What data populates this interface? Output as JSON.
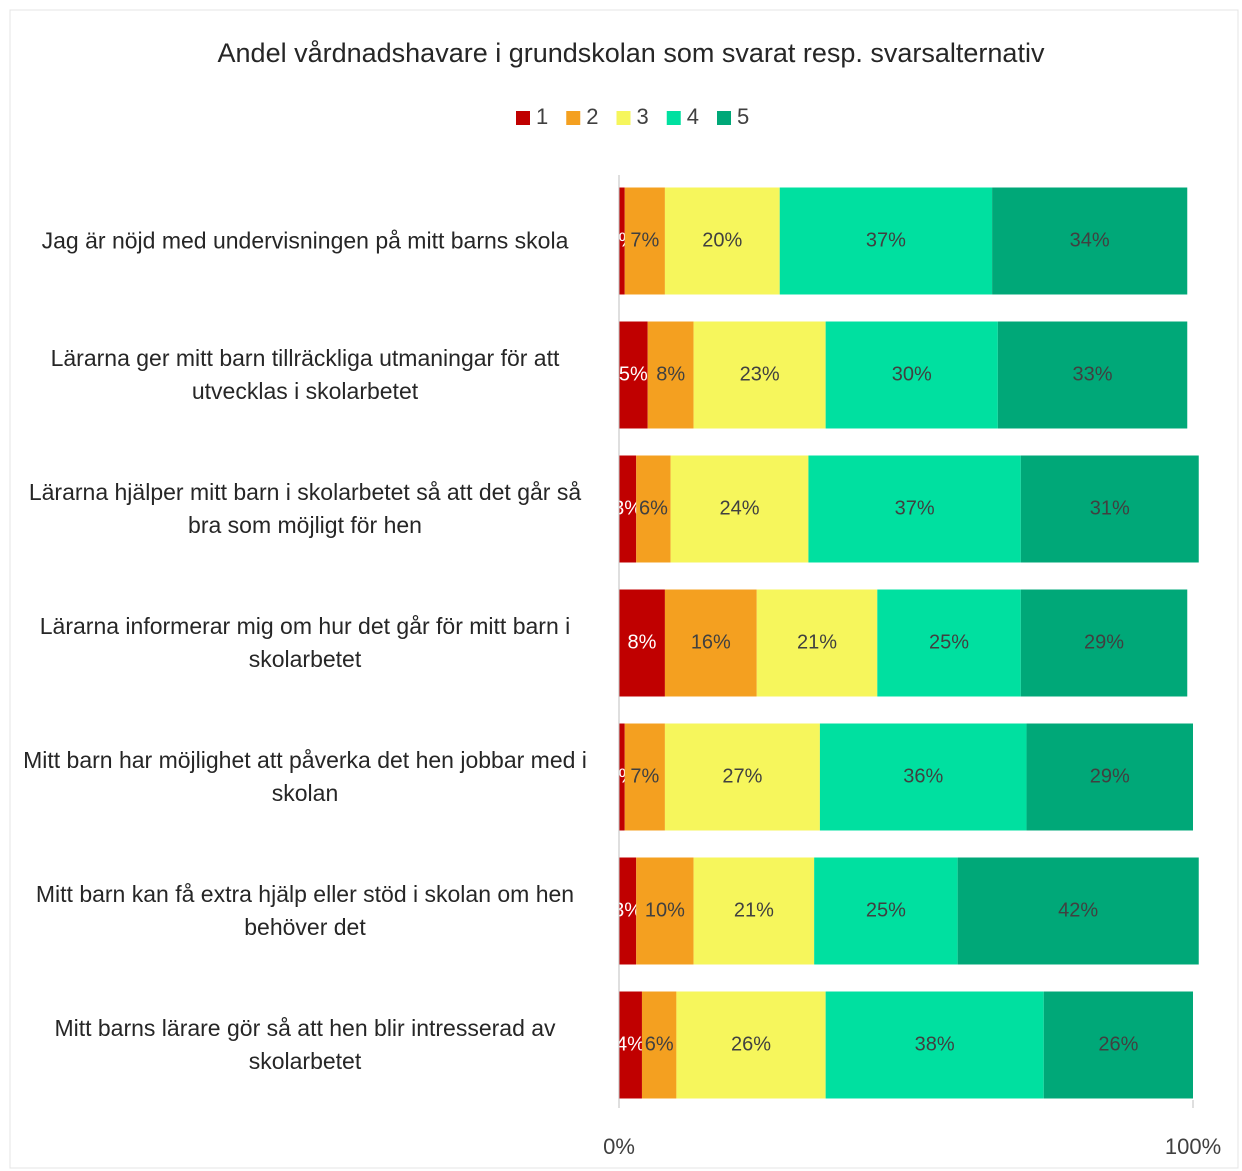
{
  "chart_data": {
    "type": "stacked_barh",
    "title": "Andel vårdnadshavare i grundskolan som svarat resp. svarsalternativ",
    "categories": [
      "Jag är nöjd med undervisningen på mitt barns skola",
      "Lärarna ger mitt barn tillräckliga utmaningar för att utvecklas i skolarbetet",
      "Lärarna hjälper mitt barn i skolarbetet så att det går så bra som möjligt för hen",
      "Lärarna informerar mig om hur det går för mitt barn i skolarbetet",
      "Mitt barn har möjlighet att påverka det hen jobbar med i skolan",
      "Mitt barn kan få extra hjälp eller stöd i skolan om hen behöver det",
      "Mitt barns lärare gör så att hen blir intresserad av skolarbetet"
    ],
    "series": [
      {
        "name": "1",
        "color": "#c00000",
        "values": [
          1,
          5,
          3,
          8,
          1,
          3,
          4
        ],
        "value_labels": [
          "1%",
          "5%",
          "3%",
          "8%",
          "1%",
          "3%",
          "4%"
        ]
      },
      {
        "name": "2",
        "color": "#f4a020",
        "values": [
          7,
          8,
          6,
          16,
          7,
          10,
          6
        ],
        "value_labels": [
          "7%",
          "8%",
          "6%",
          "16%",
          "7%",
          "10%",
          "6%"
        ]
      },
      {
        "name": "3",
        "color": "#f6f65c",
        "values": [
          20,
          23,
          24,
          21,
          27,
          21,
          26
        ],
        "value_labels": [
          "20%",
          "23%",
          "24%",
          "21%",
          "27%",
          "21%",
          "26%"
        ]
      },
      {
        "name": "4",
        "color": "#00e0a0",
        "values": [
          37,
          30,
          37,
          25,
          36,
          25,
          38
        ],
        "value_labels": [
          "37%",
          "30%",
          "37%",
          "25%",
          "36%",
          "25%",
          "38%"
        ]
      },
      {
        "name": "5",
        "color": "#00a878",
        "values": [
          34,
          33,
          31,
          29,
          29,
          42,
          26
        ],
        "value_labels": [
          "34%",
          "33%",
          "31%",
          "29%",
          "29%",
          "42%",
          "26%"
        ]
      }
    ],
    "xlim": [
      0,
      100
    ],
    "xticks": [
      {
        "value": 0,
        "label": "0%"
      },
      {
        "value": 100,
        "label": "100%"
      }
    ],
    "legend": "top"
  }
}
